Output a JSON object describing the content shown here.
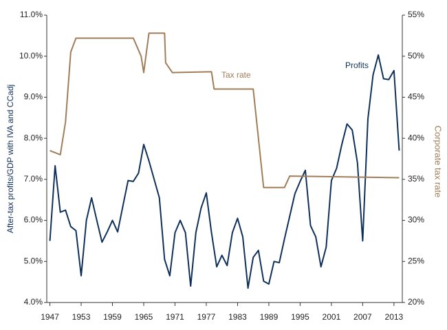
{
  "chart_data": {
    "type": "line",
    "y_axis_label": "After-tax profits/GDP with IVA and CCadj",
    "y2_axis_label": "Corporate tax rate",
    "annotations": [
      "Profits",
      "Tax rate"
    ],
    "xlim": [
      1946.4,
      2014.6
    ],
    "xticks": [
      1947,
      1953,
      1959,
      1965,
      1971,
      1977,
      1983,
      1989,
      1995,
      2001,
      2007,
      2013
    ],
    "ylim": [
      4,
      11
    ],
    "yticks": [
      {
        "value": 4,
        "label": "4.0%"
      },
      {
        "value": 5,
        "label": "5.0%"
      },
      {
        "value": 6,
        "label": "6.0%"
      },
      {
        "value": 7,
        "label": "7.0%"
      },
      {
        "value": 8,
        "label": "8.0%"
      },
      {
        "value": 9,
        "label": "9.0%"
      },
      {
        "value": 10,
        "label": "10.0%"
      },
      {
        "value": 11,
        "label": "11.0%"
      }
    ],
    "y2lim": [
      20,
      55
    ],
    "y2ticks": [
      {
        "value": 20,
        "label": "20%"
      },
      {
        "value": 25,
        "label": "25%"
      },
      {
        "value": 30,
        "label": "30%"
      },
      {
        "value": 35,
        "label": "35%"
      },
      {
        "value": 40,
        "label": "40%"
      },
      {
        "value": 45,
        "label": "45%"
      },
      {
        "value": 50,
        "label": "50%"
      },
      {
        "value": 55,
        "label": "55%"
      }
    ],
    "series": [
      {
        "name": "Profits",
        "color": "#0e2f59",
        "x": [
          1947,
          1948,
          1949,
          1950,
          1951,
          1952,
          1953,
          1954,
          1955,
          1956,
          1957,
          1958,
          1959,
          1960,
          1961,
          1962,
          1963,
          1964,
          1965,
          1966,
          1967,
          1968,
          1969,
          1970,
          1971,
          1972,
          1973,
          1974,
          1975,
          1976,
          1977,
          1978,
          1979,
          1980,
          1981,
          1982,
          1983,
          1984,
          1985,
          1986,
          1987,
          1988,
          1989,
          1990,
          1991,
          1992,
          1993,
          1994,
          1995,
          1996,
          1997,
          1998,
          1999,
          2000,
          2001,
          2002,
          2003,
          2004,
          2005,
          2006,
          2007,
          2008,
          2009,
          2010,
          2011,
          2012,
          2013,
          2014
        ],
        "values": [
          5.5,
          7.33,
          6.2,
          6.25,
          5.85,
          5.75,
          4.65,
          6.0,
          6.55,
          6.0,
          5.47,
          5.72,
          6.0,
          5.72,
          6.35,
          6.97,
          6.95,
          7.15,
          7.85,
          7.45,
          7.0,
          6.55,
          5.05,
          4.65,
          5.7,
          6.0,
          5.7,
          4.4,
          5.7,
          6.3,
          6.67,
          5.7,
          4.87,
          5.15,
          4.9,
          5.7,
          6.05,
          5.6,
          4.35,
          5.1,
          5.27,
          4.52,
          4.45,
          5.0,
          4.97,
          5.55,
          6.1,
          6.65,
          6.95,
          7.22,
          5.87,
          5.6,
          4.87,
          5.35,
          6.97,
          7.27,
          7.85,
          8.35,
          8.2,
          7.4,
          5.5,
          8.47,
          9.55,
          10.03,
          9.45,
          9.43,
          9.65,
          7.7
        ]
      },
      {
        "name": "Tax rate",
        "color": "#a07d58",
        "axis": "y2",
        "x": [
          1947,
          1949,
          1950,
          1951,
          1952,
          1963,
          1964.5,
          1965,
          1966,
          1969,
          1969.2,
          1970.5,
          1978,
          1978.5,
          1986,
          1987,
          1988,
          1992,
          1993,
          2014
        ],
        "values": [
          38.5,
          38,
          42,
          50.5,
          52.2,
          52.2,
          50,
          48,
          52.8,
          52.8,
          49.2,
          48,
          48.1,
          46,
          46,
          40,
          34,
          34,
          35.4,
          35.2
        ]
      }
    ]
  }
}
